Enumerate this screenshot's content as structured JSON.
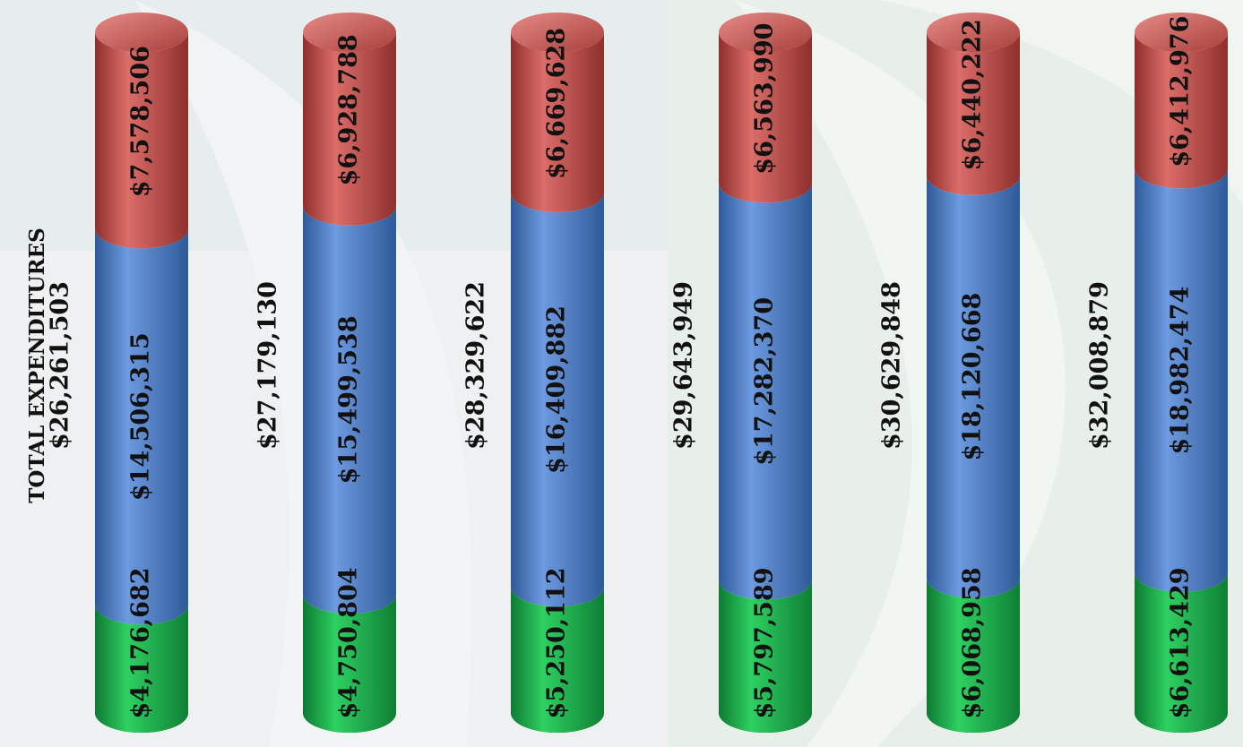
{
  "chart_data": {
    "type": "bar",
    "orientation": "vertical-stacked-cylinder",
    "axis_title": "TOTAL EXPENDITURES",
    "series": [
      {
        "name": "",
        "color": "#1fb24c",
        "values": [
          4176682,
          4750804,
          5250112,
          5797589,
          6068958,
          6613429
        ],
        "labels": [
          "$4,176,682",
          "$4,750,804",
          "$5,250,112",
          "$5,797,589",
          "$6,068,958",
          "$6,613,429"
        ]
      },
      {
        "name": "",
        "color": "#4f7fc4",
        "values": [
          14506315,
          15499538,
          16409882,
          17282370,
          18120668,
          18982474
        ],
        "labels": [
          "$14,506,315",
          "$15,499,538",
          "$16,409,882",
          "$17,282,370",
          "$18,120,668",
          "$18,982,474"
        ]
      },
      {
        "name": "",
        "color": "#c0504d",
        "values": [
          7578506,
          6928788,
          6669628,
          6563990,
          6440222,
          6412976
        ],
        "labels": [
          "$7,578,506",
          "$6,928,788",
          "$6,669,628",
          "$6,563,990",
          "$6,440,222",
          "$6,412,976"
        ]
      }
    ],
    "totals": [
      26261503,
      27179130,
      28329622,
      29643949,
      30629848,
      32008879
    ],
    "total_labels": [
      "$26,261,503",
      "$27,179,130",
      "$28,329,622",
      "$29,643,949",
      "$30,629,848",
      "$32,008,879"
    ],
    "legend": "none",
    "grid": false
  }
}
